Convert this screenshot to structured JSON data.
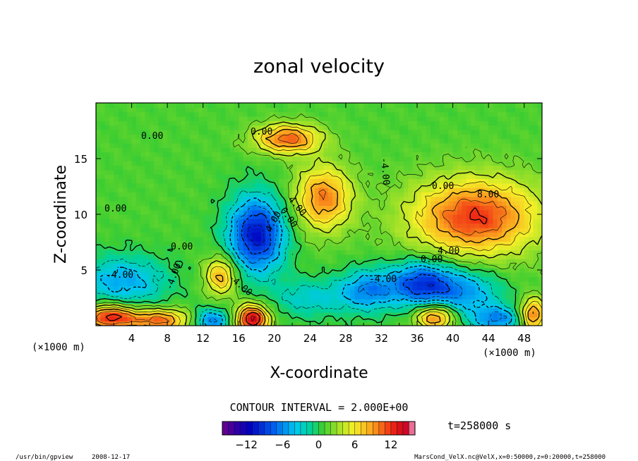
{
  "chart_data": {
    "type": "heatmap",
    "title": "zonal velocity",
    "xlabel": "X-coordinate",
    "ylabel": "Z-coordinate",
    "x_unit": "(×1000 m)",
    "z_unit": "(×1000 m)",
    "xlim": [
      0,
      50
    ],
    "ylim": [
      0,
      20
    ],
    "x_ticks": [
      "4",
      "8",
      "12",
      "16",
      "20",
      "24",
      "28",
      "32",
      "36",
      "40",
      "44",
      "48"
    ],
    "x_tick_values": [
      4,
      8,
      12,
      16,
      20,
      24,
      28,
      32,
      36,
      40,
      44,
      48
    ],
    "y_ticks": [
      "5",
      "10",
      "15"
    ],
    "y_tick_values": [
      5,
      10,
      15
    ],
    "contour_interval_text": "CONTOUR INTERVAL = 2.000E+00",
    "contour_labels": [
      "0.00",
      "0.00",
      "0.00",
      "0.00",
      "0.00",
      "0.00",
      "-4.00",
      "-4.00",
      "-4.00",
      "-4.00",
      "4.00",
      "4.00",
      "-4.00",
      "8.00",
      "0.00",
      "4.00"
    ],
    "time_text": "t=258000 s",
    "colorbar": {
      "range": [
        -16,
        16
      ],
      "tick_labels": [
        "−12",
        "−6",
        "0",
        "6",
        "12"
      ],
      "tick_values": [
        -12,
        -6,
        0,
        6,
        12
      ]
    },
    "features": [
      {
        "x": 18.0,
        "z": 8.2,
        "value": -12,
        "sx": 2.2,
        "sz": 2.4
      },
      {
        "x": 25.5,
        "z": 11.5,
        "value": 9,
        "sx": 2.2,
        "sz": 2.0
      },
      {
        "x": 42.5,
        "z": 9.8,
        "value": 11,
        "sx": 5.0,
        "sz": 2.4
      },
      {
        "x": 21.5,
        "z": 16.8,
        "value": 10,
        "sx": 2.5,
        "sz": 0.9
      },
      {
        "x": 36.5,
        "z": 3.8,
        "value": -10,
        "sx": 2.5,
        "sz": 1.4
      },
      {
        "x": 30.5,
        "z": 3.2,
        "value": -7,
        "sx": 2.2,
        "sz": 1.3
      },
      {
        "x": 41.5,
        "z": 3.0,
        "value": -6,
        "sx": 2.8,
        "sz": 1.5
      },
      {
        "x": 3.0,
        "z": 4.0,
        "value": -6,
        "sx": 3.5,
        "sz": 1.6
      },
      {
        "x": 17.5,
        "z": 0.6,
        "value": 14,
        "sx": 1.3,
        "sz": 0.9
      },
      {
        "x": 1.5,
        "z": 0.8,
        "value": 12,
        "sx": 2.0,
        "sz": 0.8
      },
      {
        "x": 7.0,
        "z": 0.5,
        "value": 10,
        "sx": 2.5,
        "sz": 0.7
      },
      {
        "x": 13.0,
        "z": 0.5,
        "value": -8,
        "sx": 1.5,
        "sz": 0.7
      },
      {
        "x": 14.0,
        "z": 4.5,
        "value": 8,
        "sx": 1.2,
        "sz": 1.2
      },
      {
        "x": 38.0,
        "z": 0.8,
        "value": 10,
        "sx": 1.5,
        "sz": 0.8
      },
      {
        "x": 45.0,
        "z": 0.6,
        "value": -7,
        "sx": 2.0,
        "sz": 0.8
      },
      {
        "x": 49.0,
        "z": 1.0,
        "value": 10,
        "sx": 1.0,
        "sz": 1.0
      },
      {
        "x": 24.0,
        "z": 2.5,
        "value": -4,
        "sx": 3.0,
        "sz": 1.2
      }
    ]
  },
  "footer": {
    "program": "/usr/bin/gpview",
    "date": "2008-12-17",
    "file_info": "MarsCond_VelX.nc@VelX,x=0:50000,z=0:20000,t=258000"
  }
}
